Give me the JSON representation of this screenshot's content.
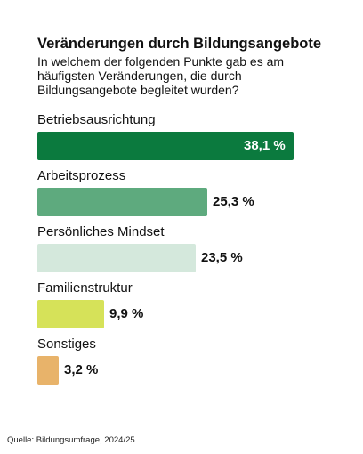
{
  "chart_data": {
    "type": "bar",
    "orientation": "horizontal",
    "title": "Veränderungen durch Bildungsangebote",
    "subtitle": "In welchem der folgenden Punkte gab es am häufigsten Veränderungen, die durch Bildungsangebote begleitet wurden?",
    "categories": [
      "Betriebsausrichtung",
      "Arbeitsprozess",
      "Persönliches Mindset",
      "Familienstruktur",
      "Sonstiges"
    ],
    "values": [
      38.1,
      25.3,
      23.5,
      9.9,
      3.2
    ],
    "value_labels": [
      "38,1 %",
      "25,3 %",
      "23,5 %",
      "9,9 %",
      "3,2 %"
    ],
    "colors": [
      "#0b7a3e",
      "#5eaa7e",
      "#d4e8dc",
      "#d6e259",
      "#e8b36a"
    ],
    "unit": "%",
    "source": "Quelle: Bildungsumfrage, 2024/25"
  }
}
